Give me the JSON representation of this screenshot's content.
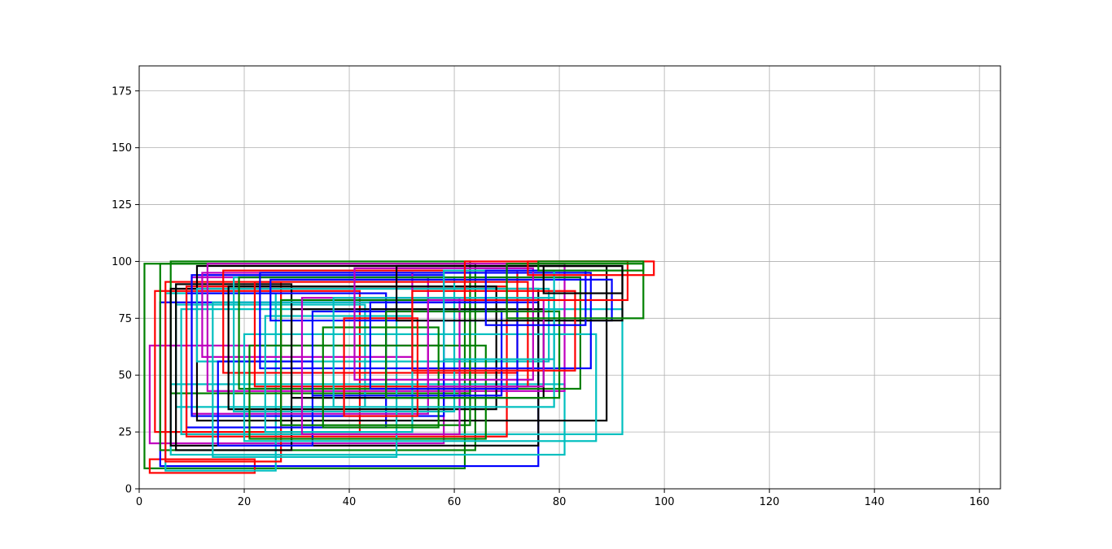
{
  "chart_data": {
    "type": "rectangles",
    "title": "",
    "xlabel": "",
    "ylabel": "",
    "xlim": [
      0,
      164
    ],
    "ylim": [
      0,
      186
    ],
    "x_ticks": [
      "0",
      "20",
      "40",
      "60",
      "80",
      "100",
      "120",
      "140",
      "160"
    ],
    "y_ticks": [
      "0",
      "25",
      "50",
      "75",
      "100",
      "125",
      "150",
      "175"
    ],
    "grid": true,
    "palette": [
      "#0000ff",
      "#008000",
      "#ff0000",
      "#00bfbf",
      "#bf00bf",
      "#000000"
    ],
    "rectangles": [
      {
        "x0": 1,
        "x1": 62,
        "y0": 9,
        "y1": 99,
        "color": "#008000"
      },
      {
        "x0": 2,
        "x1": 22,
        "y0": 7,
        "y1": 13,
        "color": "#ff0000"
      },
      {
        "x0": 2,
        "x1": 58,
        "y0": 20,
        "y1": 63,
        "color": "#bf00bf"
      },
      {
        "x0": 3,
        "x1": 42,
        "y0": 25,
        "y1": 87,
        "color": "#ff0000"
      },
      {
        "x0": 4,
        "x1": 76,
        "y0": 10,
        "y1": 82,
        "color": "#0000ff"
      },
      {
        "x0": 4,
        "x1": 64,
        "y0": 17,
        "y1": 99,
        "color": "#008000"
      },
      {
        "x0": 5,
        "x1": 26,
        "y0": 8,
        "y1": 86,
        "color": "#00bfbf"
      },
      {
        "x0": 5,
        "x1": 27,
        "y0": 12,
        "y1": 91,
        "color": "#ff0000"
      },
      {
        "x0": 6,
        "x1": 81,
        "y0": 15,
        "y1": 46,
        "color": "#00bfbf"
      },
      {
        "x0": 6,
        "x1": 63,
        "y0": 42,
        "y1": 100,
        "color": "#008000"
      },
      {
        "x0": 6,
        "x1": 76,
        "y0": 19,
        "y1": 88,
        "color": "#000000"
      },
      {
        "x0": 7,
        "x1": 43,
        "y0": 36,
        "y1": 81,
        "color": "#00bfbf"
      },
      {
        "x0": 7,
        "x1": 29,
        "y0": 17,
        "y1": 90,
        "color": "#000000"
      },
      {
        "x0": 8,
        "x1": 92,
        "y0": 24,
        "y1": 79,
        "color": "#00bfbf"
      },
      {
        "x0": 9,
        "x1": 47,
        "y0": 27,
        "y1": 86,
        "color": "#0000ff"
      },
      {
        "x0": 9,
        "x1": 70,
        "y0": 23,
        "y1": 89,
        "color": "#ff0000"
      },
      {
        "x0": 10,
        "x1": 55,
        "y0": 33,
        "y1": 93,
        "color": "#bf00bf"
      },
      {
        "x0": 10,
        "x1": 58,
        "y0": 32,
        "y1": 94,
        "color": "#0000ff"
      },
      {
        "x0": 11,
        "x1": 89,
        "y0": 30,
        "y1": 98,
        "color": "#000000"
      },
      {
        "x0": 11,
        "x1": 78,
        "y0": 56,
        "y1": 88,
        "color": "#00bfbf"
      },
      {
        "x0": 12,
        "x1": 52,
        "y0": 58,
        "y1": 95,
        "color": "#bf00bf"
      },
      {
        "x0": 13,
        "x1": 81,
        "y0": 43,
        "y1": 99,
        "color": "#bf00bf"
      },
      {
        "x0": 14,
        "x1": 49,
        "y0": 14,
        "y1": 82,
        "color": "#00bfbf"
      },
      {
        "x0": 15,
        "x1": 33,
        "y0": 19,
        "y1": 56,
        "color": "#0000ff"
      },
      {
        "x0": 16,
        "x1": 72,
        "y0": 51,
        "y1": 96,
        "color": "#ff0000"
      },
      {
        "x0": 17,
        "x1": 68,
        "y0": 35,
        "y1": 89,
        "color": "#000000"
      },
      {
        "x0": 18,
        "x1": 60,
        "y0": 34,
        "y1": 93,
        "color": "#00bfbf"
      },
      {
        "x0": 19,
        "x1": 84,
        "y0": 44,
        "y1": 93,
        "color": "#008000"
      },
      {
        "x0": 20,
        "x1": 87,
        "y0": 21,
        "y1": 68,
        "color": "#00bfbf"
      },
      {
        "x0": 21,
        "x1": 66,
        "y0": 22,
        "y1": 63,
        "color": "#008000"
      },
      {
        "x0": 22,
        "x1": 74,
        "y0": 45,
        "y1": 91,
        "color": "#ff0000"
      },
      {
        "x0": 23,
        "x1": 86,
        "y0": 53,
        "y1": 95,
        "color": "#0000ff"
      },
      {
        "x0": 24,
        "x1": 52,
        "y0": 25,
        "y1": 76,
        "color": "#00bfbf"
      },
      {
        "x0": 25,
        "x1": 90,
        "y0": 74,
        "y1": 92,
        "color": "#0000ff"
      },
      {
        "x0": 27,
        "x1": 63,
        "y0": 28,
        "y1": 83,
        "color": "#008000"
      },
      {
        "x0": 29,
        "x1": 77,
        "y0": 40,
        "y1": 79,
        "color": "#000000"
      },
      {
        "x0": 31,
        "x1": 61,
        "y0": 24,
        "y1": 84,
        "color": "#bf00bf"
      },
      {
        "x0": 33,
        "x1": 69,
        "y0": 41,
        "y1": 78,
        "color": "#0000ff"
      },
      {
        "x0": 35,
        "x1": 57,
        "y0": 27,
        "y1": 71,
        "color": "#008000"
      },
      {
        "x0": 37,
        "x1": 79,
        "y0": 36,
        "y1": 84,
        "color": "#00bfbf"
      },
      {
        "x0": 39,
        "x1": 53,
        "y0": 32,
        "y1": 75,
        "color": "#ff0000"
      },
      {
        "x0": 41,
        "x1": 75,
        "y0": 48,
        "y1": 97,
        "color": "#bf00bf"
      },
      {
        "x0": 44,
        "x1": 72,
        "y0": 44,
        "y1": 82,
        "color": "#0000ff"
      },
      {
        "x0": 47,
        "x1": 80,
        "y0": 40,
        "y1": 78,
        "color": "#008000"
      },
      {
        "x0": 49,
        "x1": 92,
        "y0": 74,
        "y1": 98,
        "color": "#000000"
      },
      {
        "x0": 52,
        "x1": 83,
        "y0": 52,
        "y1": 87,
        "color": "#ff0000"
      },
      {
        "x0": 55,
        "x1": 77,
        "y0": 45,
        "y1": 83,
        "color": "#bf00bf"
      },
      {
        "x0": 58,
        "x1": 79,
        "y0": 57,
        "y1": 96,
        "color": "#00bfbf"
      },
      {
        "x0": 62,
        "x1": 93,
        "y0": 83,
        "y1": 100,
        "color": "#ff0000"
      },
      {
        "x0": 66,
        "x1": 85,
        "y0": 72,
        "y1": 96,
        "color": "#0000ff"
      },
      {
        "x0": 70,
        "x1": 96,
        "y0": 75,
        "y1": 99,
        "color": "#008000"
      },
      {
        "x0": 74,
        "x1": 98,
        "y0": 94,
        "y1": 100,
        "color": "#ff0000"
      },
      {
        "x0": 76,
        "x1": 96,
        "y0": 96,
        "y1": 100,
        "color": "#008000"
      },
      {
        "x0": 77,
        "x1": 92,
        "y0": 86,
        "y1": 98,
        "color": "#000000"
      }
    ]
  }
}
